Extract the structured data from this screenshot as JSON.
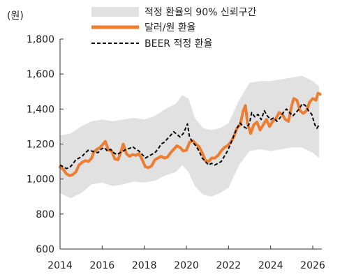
{
  "chart_data": {
    "type": "line",
    "unit_label": "(원)",
    "x_range": [
      2014,
      2026.4
    ],
    "ylim": [
      600,
      1800
    ],
    "x_ticks": [
      2014,
      2016,
      2018,
      2020,
      2022,
      2024,
      2026
    ],
    "x_tick_labels": [
      "2014",
      "2016",
      "2018",
      "2020",
      "2022",
      "2024",
      "2026"
    ],
    "y_ticks": [
      600,
      800,
      1000,
      1200,
      1400,
      1600,
      1800
    ],
    "y_tick_labels": [
      "600",
      "800",
      "1,000",
      "1,200",
      "1,400",
      "1,600",
      "1,800"
    ],
    "grid": false,
    "legend_position": "top",
    "legend": {
      "band": "적정 환율의 90% 신뢰구간",
      "actual": "달러/원 환율",
      "beer": "BEER 적정 환율"
    },
    "colors": {
      "band": "#e1e1e1",
      "actual": "#ed7d31",
      "beer": "#000000",
      "axis": "#333333"
    },
    "series": [
      {
        "name": "적정 환율의 90% 신뢰구간",
        "kind": "band",
        "points": [
          {
            "x": 2014.0,
            "lo": 920,
            "hi": 1250
          },
          {
            "x": 2014.5,
            "lo": 890,
            "hi": 1260
          },
          {
            "x": 2015.0,
            "lo": 920,
            "hi": 1300
          },
          {
            "x": 2015.5,
            "lo": 970,
            "hi": 1330
          },
          {
            "x": 2016.0,
            "lo": 980,
            "hi": 1340
          },
          {
            "x": 2016.5,
            "lo": 960,
            "hi": 1330
          },
          {
            "x": 2017.0,
            "lo": 970,
            "hi": 1340
          },
          {
            "x": 2017.5,
            "lo": 985,
            "hi": 1350
          },
          {
            "x": 2018.0,
            "lo": 980,
            "hi": 1340
          },
          {
            "x": 2018.5,
            "lo": 990,
            "hi": 1360
          },
          {
            "x": 2019.0,
            "lo": 1020,
            "hi": 1400
          },
          {
            "x": 2019.5,
            "lo": 1040,
            "hi": 1430
          },
          {
            "x": 2019.8,
            "lo": 1080,
            "hi": 1480
          },
          {
            "x": 2020.1,
            "lo": 1040,
            "hi": 1460
          },
          {
            "x": 2020.4,
            "lo": 960,
            "hi": 1350
          },
          {
            "x": 2020.8,
            "lo": 910,
            "hi": 1290
          },
          {
            "x": 2021.2,
            "lo": 900,
            "hi": 1280
          },
          {
            "x": 2021.6,
            "lo": 920,
            "hi": 1290
          },
          {
            "x": 2022.0,
            "lo": 950,
            "hi": 1320
          },
          {
            "x": 2022.5,
            "lo": 1080,
            "hi": 1450
          },
          {
            "x": 2023.0,
            "lo": 1160,
            "hi": 1550
          },
          {
            "x": 2023.5,
            "lo": 1170,
            "hi": 1560
          },
          {
            "x": 2024.0,
            "lo": 1160,
            "hi": 1560
          },
          {
            "x": 2024.5,
            "lo": 1170,
            "hi": 1570
          },
          {
            "x": 2025.0,
            "lo": 1180,
            "hi": 1580
          },
          {
            "x": 2025.5,
            "lo": 1180,
            "hi": 1590
          },
          {
            "x": 2026.0,
            "lo": 1150,
            "hi": 1560
          },
          {
            "x": 2026.3,
            "lo": 1120,
            "hi": 1530
          }
        ]
      },
      {
        "name": "달러/원 환율",
        "kind": "line",
        "points": [
          [
            2014.0,
            1070
          ],
          [
            2014.15,
            1055
          ],
          [
            2014.3,
            1030
          ],
          [
            2014.45,
            1020
          ],
          [
            2014.6,
            1025
          ],
          [
            2014.75,
            1040
          ],
          [
            2014.9,
            1080
          ],
          [
            2015.05,
            1095
          ],
          [
            2015.2,
            1105
          ],
          [
            2015.35,
            1100
          ],
          [
            2015.5,
            1120
          ],
          [
            2015.6,
            1155
          ],
          [
            2015.75,
            1170
          ],
          [
            2015.9,
            1180
          ],
          [
            2016.05,
            1200
          ],
          [
            2016.15,
            1215
          ],
          [
            2016.3,
            1165
          ],
          [
            2016.45,
            1160
          ],
          [
            2016.6,
            1115
          ],
          [
            2016.75,
            1110
          ],
          [
            2016.9,
            1160
          ],
          [
            2017.0,
            1200
          ],
          [
            2017.15,
            1145
          ],
          [
            2017.3,
            1130
          ],
          [
            2017.45,
            1140
          ],
          [
            2017.6,
            1135
          ],
          [
            2017.75,
            1145
          ],
          [
            2017.9,
            1110
          ],
          [
            2018.05,
            1070
          ],
          [
            2018.2,
            1065
          ],
          [
            2018.35,
            1075
          ],
          [
            2018.5,
            1110
          ],
          [
            2018.65,
            1120
          ],
          [
            2018.8,
            1130
          ],
          [
            2018.95,
            1120
          ],
          [
            2019.1,
            1125
          ],
          [
            2019.25,
            1150
          ],
          [
            2019.4,
            1170
          ],
          [
            2019.55,
            1190
          ],
          [
            2019.7,
            1180
          ],
          [
            2019.85,
            1160
          ],
          [
            2020.0,
            1165
          ],
          [
            2020.15,
            1210
          ],
          [
            2020.3,
            1220
          ],
          [
            2020.45,
            1200
          ],
          [
            2020.6,
            1185
          ],
          [
            2020.75,
            1150
          ],
          [
            2020.9,
            1105
          ],
          [
            2021.05,
            1100
          ],
          [
            2021.2,
            1120
          ],
          [
            2021.35,
            1120
          ],
          [
            2021.5,
            1135
          ],
          [
            2021.65,
            1160
          ],
          [
            2021.8,
            1180
          ],
          [
            2021.95,
            1190
          ],
          [
            2022.1,
            1210
          ],
          [
            2022.25,
            1240
          ],
          [
            2022.4,
            1290
          ],
          [
            2022.55,
            1310
          ],
          [
            2022.7,
            1390
          ],
          [
            2022.8,
            1420
          ],
          [
            2022.9,
            1320
          ],
          [
            2023.05,
            1260
          ],
          [
            2023.2,
            1310
          ],
          [
            2023.35,
            1325
          ],
          [
            2023.5,
            1280
          ],
          [
            2023.65,
            1310
          ],
          [
            2023.8,
            1340
          ],
          [
            2023.95,
            1300
          ],
          [
            2024.1,
            1330
          ],
          [
            2024.25,
            1345
          ],
          [
            2024.4,
            1380
          ],
          [
            2024.55,
            1370
          ],
          [
            2024.7,
            1340
          ],
          [
            2024.85,
            1330
          ],
          [
            2025.0,
            1420
          ],
          [
            2025.1,
            1460
          ],
          [
            2025.25,
            1450
          ],
          [
            2025.4,
            1390
          ],
          [
            2025.55,
            1375
          ],
          [
            2025.7,
            1390
          ],
          [
            2025.85,
            1440
          ],
          [
            2026.0,
            1460
          ],
          [
            2026.15,
            1450
          ],
          [
            2026.25,
            1490
          ],
          [
            2026.35,
            1485
          ]
        ]
      },
      {
        "name": "BEER 적정 환율",
        "kind": "line",
        "points": [
          [
            2014.0,
            1080
          ],
          [
            2014.15,
            1070
          ],
          [
            2014.3,
            1060
          ],
          [
            2014.45,
            1065
          ],
          [
            2014.6,
            1085
          ],
          [
            2014.75,
            1110
          ],
          [
            2014.9,
            1120
          ],
          [
            2015.05,
            1130
          ],
          [
            2015.2,
            1150
          ],
          [
            2015.35,
            1165
          ],
          [
            2015.5,
            1160
          ],
          [
            2015.65,
            1155
          ],
          [
            2015.8,
            1150
          ],
          [
            2015.95,
            1170
          ],
          [
            2016.1,
            1180
          ],
          [
            2016.25,
            1160
          ],
          [
            2016.4,
            1170
          ],
          [
            2016.55,
            1150
          ],
          [
            2016.7,
            1140
          ],
          [
            2016.85,
            1150
          ],
          [
            2017.0,
            1160
          ],
          [
            2017.15,
            1170
          ],
          [
            2017.3,
            1175
          ],
          [
            2017.45,
            1185
          ],
          [
            2017.6,
            1170
          ],
          [
            2017.75,
            1160
          ],
          [
            2017.9,
            1140
          ],
          [
            2018.05,
            1120
          ],
          [
            2018.2,
            1130
          ],
          [
            2018.35,
            1140
          ],
          [
            2018.5,
            1150
          ],
          [
            2018.65,
            1170
          ],
          [
            2018.8,
            1200
          ],
          [
            2018.95,
            1210
          ],
          [
            2019.1,
            1230
          ],
          [
            2019.25,
            1250
          ],
          [
            2019.4,
            1270
          ],
          [
            2019.55,
            1255
          ],
          [
            2019.7,
            1240
          ],
          [
            2019.85,
            1260
          ],
          [
            2020.0,
            1300
          ],
          [
            2020.05,
            1315
          ],
          [
            2020.15,
            1240
          ],
          [
            2020.3,
            1210
          ],
          [
            2020.45,
            1190
          ],
          [
            2020.6,
            1160
          ],
          [
            2020.75,
            1120
          ],
          [
            2020.9,
            1100
          ],
          [
            2021.05,
            1080
          ],
          [
            2021.2,
            1090
          ],
          [
            2021.35,
            1080
          ],
          [
            2021.5,
            1090
          ],
          [
            2021.65,
            1100
          ],
          [
            2021.8,
            1130
          ],
          [
            2021.95,
            1160
          ],
          [
            2022.1,
            1200
          ],
          [
            2022.25,
            1250
          ],
          [
            2022.4,
            1290
          ],
          [
            2022.55,
            1320
          ],
          [
            2022.7,
            1300
          ],
          [
            2022.85,
            1290
          ],
          [
            2023.0,
            1320
          ],
          [
            2023.1,
            1380
          ],
          [
            2023.25,
            1355
          ],
          [
            2023.4,
            1370
          ],
          [
            2023.55,
            1340
          ],
          [
            2023.7,
            1390
          ],
          [
            2023.85,
            1360
          ],
          [
            2024.0,
            1340
          ],
          [
            2024.15,
            1350
          ],
          [
            2024.3,
            1330
          ],
          [
            2024.45,
            1350
          ],
          [
            2024.6,
            1380
          ],
          [
            2024.75,
            1400
          ],
          [
            2024.9,
            1380
          ],
          [
            2025.05,
            1360
          ],
          [
            2025.2,
            1380
          ],
          [
            2025.35,
            1400
          ],
          [
            2025.5,
            1430
          ],
          [
            2025.65,
            1420
          ],
          [
            2025.8,
            1390
          ],
          [
            2025.95,
            1370
          ],
          [
            2026.1,
            1310
          ],
          [
            2026.2,
            1290
          ],
          [
            2026.3,
            1310
          ]
        ]
      }
    ]
  }
}
